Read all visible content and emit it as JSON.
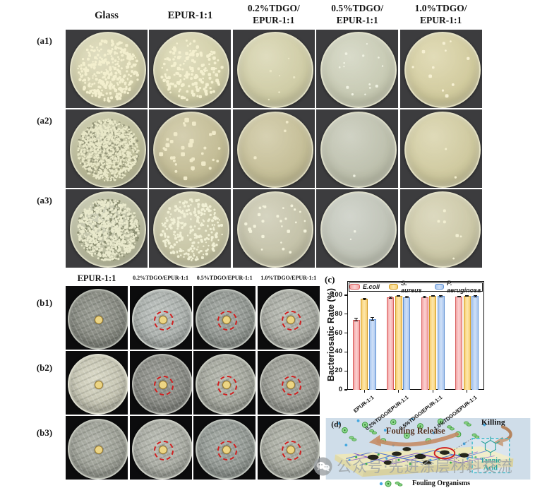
{
  "panel_a": {
    "row_labels": [
      "(a1)",
      "(a2)",
      "(a3)"
    ],
    "column_headers": [
      [
        "Glass"
      ],
      [
        "EPUR-1:1"
      ],
      [
        "0.2%TDGO/",
        "EPUR-1:1"
      ],
      [
        "0.5%TDGO/",
        "EPUR-1:1"
      ],
      [
        "1.0%TDGO/",
        "EPUR-1:1"
      ]
    ],
    "dishes": [
      [
        {
          "base": "#d8d5b0",
          "colonies": 340,
          "size": 1.3,
          "color": "#f3efce"
        },
        {
          "base": "#d9d6af",
          "colonies": 170,
          "size": 1.5,
          "color": "#f4f0cf"
        },
        {
          "base": "#d6d3ac",
          "colonies": 6,
          "size": 1.1,
          "color": "#e9e6c4"
        },
        {
          "base": "#ced1bb",
          "colonies": 14,
          "size": 1.2,
          "color": "#f0f2e2"
        },
        {
          "base": "#d9d2a4",
          "colonies": 11,
          "size": 1.6,
          "color": "#f6f0d2"
        }
      ],
      [
        {
          "base": "#c5c5a1",
          "colonies": 850,
          "size": 0.9,
          "color": "#e9e8c8",
          "dark": 450,
          "darkColor": "#96977a"
        },
        {
          "base": "#c9c29a",
          "colonies": 34,
          "size": 2.2,
          "color": "#f0eac9"
        },
        {
          "base": "#cbc49c",
          "colonies": 3,
          "size": 1.4,
          "color": "#efe9c8"
        },
        {
          "base": "#c3c6b4",
          "colonies": 1,
          "size": 1.0,
          "color": "#eef0e0"
        },
        {
          "base": "#d6d0a5",
          "colonies": 2,
          "size": 1.2,
          "color": "#f3eecd"
        }
      ],
      [
        {
          "base": "#c1c3a6",
          "colonies": 750,
          "size": 1.0,
          "color": "#e9e9cc",
          "dark": 380,
          "darkColor": "#8d9073"
        },
        {
          "base": "#cdcbaa",
          "colonies": 270,
          "size": 1.2,
          "color": "#f1f0d5"
        },
        {
          "base": "#cac8af",
          "colonies": 26,
          "size": 1.5,
          "color": "#f3f2db"
        },
        {
          "base": "#c6cabf",
          "colonies": 2,
          "size": 1.0,
          "color": "#eff1e4"
        },
        {
          "base": "#d3cfae",
          "colonies": 6,
          "size": 1.5,
          "color": "#f2efd2"
        }
      ]
    ]
  },
  "panel_b": {
    "row_labels": [
      "(b1)",
      "(b2)",
      "(b3)"
    ],
    "column_headers": [
      "EPUR-1:1",
      "0.2%TDGO/EPUR-1:1",
      "0.5%TDGO/EPUR-1:1",
      "1.0%TDGO/EPUR-1:1"
    ],
    "disc_color": "#ecd584",
    "ring_color": "#d01f1f",
    "dishes": [
      [
        {
          "base": "#8d9086",
          "ring": false
        },
        {
          "base": "#b7bdb9",
          "ring": true
        },
        {
          "base": "#9aa09a",
          "ring": true
        },
        {
          "base": "#b3b6ad",
          "ring": true
        }
      ],
      [
        {
          "base": "#d6d5c0",
          "ring": false
        },
        {
          "base": "#8f918a",
          "ring": true
        },
        {
          "base": "#afb2a7",
          "ring": true
        },
        {
          "base": "#a3a59c",
          "ring": true
        }
      ],
      [
        {
          "base": "#a7aa9f",
          "ring": false
        },
        {
          "base": "#b4b7ad",
          "ring": true
        },
        {
          "base": "#9ba29c",
          "ring": true
        },
        {
          "base": "#afb2a7",
          "ring": true
        }
      ]
    ]
  },
  "panel_c": {
    "label": "(c)"
  },
  "chart_data": {
    "type": "bar",
    "title": "",
    "xlabel": "",
    "ylabel": "Bacteriosatic Rate (%)",
    "ylim": [
      0,
      112
    ],
    "yticks": [
      0,
      20,
      40,
      60,
      80,
      100
    ],
    "grid": false,
    "legend_position": "top-inside",
    "categories": [
      "EPUR-1:1",
      "0.2%TDGO/EPUR-1:1",
      "0.5%TDGO/EPUR-1:1",
      "1.0%TDGO/EPUR-1:1"
    ],
    "series": [
      {
        "name": "E.coli",
        "fill": "#f4a5a5",
        "light": "#fbd2d2",
        "edge": "#d96161",
        "values": [
          74,
          97.5,
          98,
          98.5
        ],
        "errors": [
          1.5,
          0.7,
          0.6,
          0.6
        ]
      },
      {
        "name": "S. aureus",
        "fill": "#f9cf6f",
        "light": "#fce7ae",
        "edge": "#cf9a26",
        "values": [
          96,
          99.5,
          99.5,
          99.5
        ],
        "errors": [
          0.7,
          0.4,
          0.4,
          0.4
        ]
      },
      {
        "name": "P. aeruginosa",
        "fill": "#a9c7ef",
        "light": "#d0e0f7",
        "edge": "#6292d2",
        "values": [
          75,
          98,
          99,
          99
        ],
        "errors": [
          1.3,
          0.6,
          0.5,
          0.5
        ]
      }
    ]
  },
  "panel_d": {
    "label": "(d)",
    "killing": "Killing",
    "fouling_release": "Fouling Release",
    "tannic_acid_line1": "Tannic",
    "tannic_acid_line2": "Acid",
    "organisms_legend": "Fouling Organisms"
  },
  "watermark": {
    "text": "公众号·先进涂层材料交流"
  }
}
